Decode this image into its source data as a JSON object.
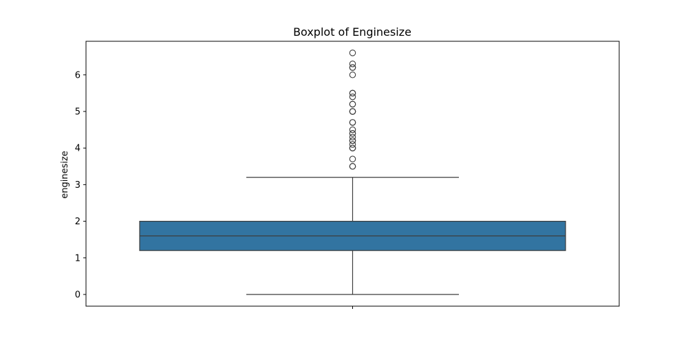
{
  "chart_data": {
    "type": "boxplot",
    "title": "Boxplot of Enginesize",
    "xlabel": "",
    "ylabel": "enginesize",
    "ylim": [
      -0.3,
      6.85
    ],
    "yticks": [
      "0",
      "1",
      "2",
      "3",
      "4",
      "5",
      "6"
    ],
    "yticks_values": [
      0,
      1,
      2,
      3,
      4,
      5,
      6
    ],
    "grid": false,
    "legend": "none",
    "box": {
      "whisker_low": 0.0,
      "q1": 1.2,
      "median": 1.6,
      "q3": 2.0,
      "whisker_high": 3.2
    },
    "outliers": [
      3.5,
      3.5,
      3.7,
      4.0,
      4.0,
      4.0,
      4.1,
      4.2,
      4.2,
      4.3,
      4.4,
      4.4,
      4.5,
      4.7,
      4.7,
      5.0,
      5.0,
      5.0,
      5.2,
      5.2,
      5.4,
      5.5,
      5.5,
      6.0,
      6.2,
      6.2,
      6.3,
      6.6
    ],
    "colors": {
      "box_fill": "#3274a1",
      "lines": "#3c3c3c"
    }
  }
}
